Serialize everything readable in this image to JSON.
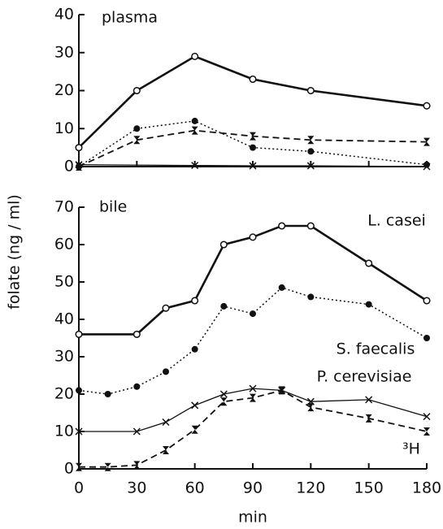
{
  "chart_data": [
    {
      "type": "line",
      "title": "plasma",
      "xlim": [
        0,
        180
      ],
      "xticks": [
        0,
        30,
        60,
        90,
        120,
        150,
        180
      ],
      "ylim": [
        0,
        40
      ],
      "yticks": [
        0,
        10,
        20,
        30,
        40
      ],
      "series": [
        {
          "color": "#111111",
          "marker": "open-circle",
          "line": "solid-thick",
          "x": [
            0,
            30,
            60,
            90,
            120,
            180
          ],
          "values": [
            5,
            20,
            29,
            23,
            20,
            16
          ]
        },
        {
          "color": "#111111",
          "marker": "filled-circle",
          "line": "dotted",
          "x": [
            0,
            30,
            60,
            90,
            120,
            180
          ],
          "values": [
            0,
            10,
            12,
            5,
            4,
            0.5
          ]
        },
        {
          "color": "#111111",
          "marker": "cross",
          "line": "solid",
          "x": [
            0,
            60,
            90,
            120,
            180
          ],
          "values": [
            0.5,
            0.3,
            0.2,
            0.2,
            0
          ]
        },
        {
          "color": "#111111",
          "marker": "hourglass",
          "line": "dashed",
          "x": [
            0,
            30,
            60,
            90,
            120,
            180
          ],
          "values": [
            0,
            7,
            9.5,
            8,
            7,
            6.5
          ]
        }
      ]
    },
    {
      "type": "line",
      "title": "bile",
      "xlabel": "min",
      "ylabel": "folate (ng / ml)",
      "xlim": [
        0,
        180
      ],
      "xticks": [
        0,
        30,
        60,
        90,
        120,
        150,
        180
      ],
      "ylim": [
        0,
        70
      ],
      "yticks": [
        0,
        10,
        20,
        30,
        40,
        50,
        60,
        70
      ],
      "series": [
        {
          "name": "L. casei",
          "color": "#111111",
          "marker": "open-circle",
          "line": "solid-thick",
          "x": [
            0,
            30,
            45,
            60,
            75,
            90,
            105,
            120,
            150,
            180
          ],
          "values": [
            36,
            36,
            43,
            45,
            60,
            62,
            65,
            65,
            55,
            45
          ]
        },
        {
          "name": "S. faecalis",
          "color": "#111111",
          "marker": "filled-circle",
          "line": "dotted",
          "x": [
            0,
            15,
            30,
            45,
            60,
            75,
            90,
            105,
            120,
            150,
            180
          ],
          "values": [
            21,
            20,
            22,
            26,
            32,
            43.5,
            41.5,
            48.5,
            46,
            44,
            35
          ]
        },
        {
          "name": "P. cerevisiae",
          "color": "#111111",
          "marker": "cross",
          "line": "solid",
          "x": [
            0,
            30,
            45,
            60,
            75,
            90,
            105,
            120,
            150,
            180
          ],
          "values": [
            10,
            10,
            12.5,
            17,
            20,
            21.5,
            21,
            18,
            18.5,
            14
          ]
        },
        {
          "name": "³H",
          "color": "#111111",
          "marker": "hourglass",
          "line": "dashed",
          "x": [
            0,
            15,
            30,
            45,
            60,
            75,
            90,
            105,
            120,
            150,
            180
          ],
          "values": [
            0.5,
            0.5,
            1,
            5,
            10.5,
            18,
            19,
            21,
            16.5,
            13.5,
            10
          ]
        }
      ]
    }
  ]
}
